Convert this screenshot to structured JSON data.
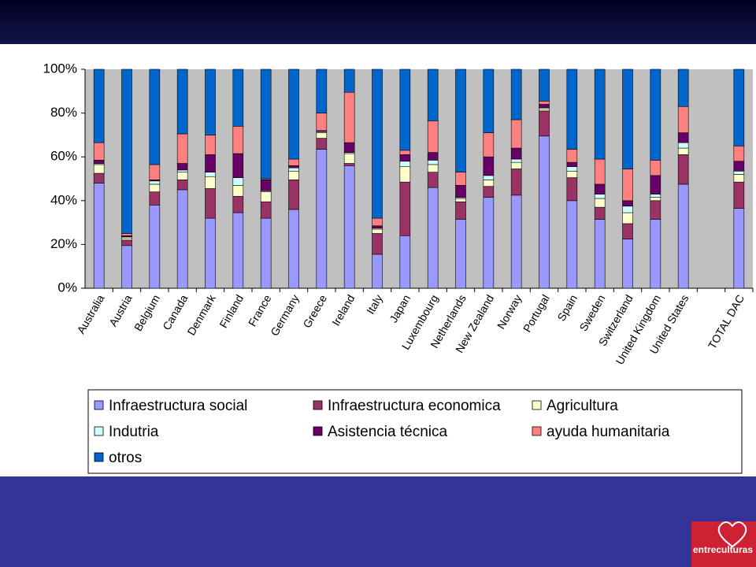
{
  "chart_data": {
    "type": "stacked_bar",
    "categories": [
      "Australia",
      "Austria",
      "Belgium",
      "Canada",
      "Denmark",
      "Finland",
      "France",
      "Germany",
      "Greece",
      "Ireland",
      "Italy",
      "Japan",
      "Luxembourg",
      "Netherlands",
      "New Zealand",
      "Norway",
      "Portugal",
      "Spain",
      "Sweden",
      "Switzerland",
      "United Kingdom",
      "United States",
      null,
      "TOTAL DAC"
    ],
    "series": [
      {
        "name": "Infraestructura social",
        "color": "#9999ff",
        "values": [
          48,
          19.5,
          38,
          45,
          32,
          34.5,
          32,
          36,
          63.5,
          56,
          15.5,
          24,
          46,
          31.5,
          41.5,
          42.5,
          69.5,
          40,
          31.5,
          22.5,
          31.5,
          47.5,
          null,
          36.5
        ]
      },
      {
        "name": "Infraestructura economica",
        "color": "#993366",
        "values": [
          4.5,
          2.5,
          6,
          4.5,
          13.5,
          7.5,
          7.5,
          13.5,
          5,
          1,
          9.5,
          24.5,
          7,
          8,
          5,
          12,
          11.5,
          10.5,
          5.5,
          7,
          8.5,
          13.5,
          null,
          12
        ]
      },
      {
        "name": "Agricultura",
        "color": "#ffffcc",
        "values": [
          4,
          1,
          3.5,
          3.5,
          5.5,
          5,
          4.5,
          4,
          2.5,
          4.5,
          2,
          7,
          3.5,
          1.5,
          3,
          3,
          1,
          3,
          4,
          5,
          1.5,
          3,
          null,
          3.5
        ]
      },
      {
        "name": "Indutria",
        "color": "#ccffff",
        "values": [
          0.5,
          0.5,
          1.5,
          1,
          2,
          3.5,
          0.5,
          1.5,
          0.5,
          0.5,
          0.5,
          2.5,
          2,
          0.5,
          2,
          1.5,
          0.5,
          2,
          2,
          3,
          1.5,
          2.5,
          null,
          1.5
        ]
      },
      {
        "name": "Asistencia técnica",
        "color": "#660066",
        "values": [
          1.5,
          0.5,
          0.5,
          3,
          8,
          11,
          5,
          1,
          0.5,
          4.5,
          1,
          3,
          3.5,
          5.5,
          8.5,
          5,
          1.5,
          2,
          4.5,
          2.5,
          8.5,
          4.5,
          null,
          4.5
        ]
      },
      {
        "name": "ayuda humanitaria",
        "color": "#ff8080",
        "values": [
          8,
          1,
          7,
          13.5,
          9,
          12.5,
          0.5,
          3,
          8,
          23,
          3.5,
          2,
          14.5,
          6,
          11,
          13,
          1.5,
          6,
          11.5,
          14.5,
          7,
          12,
          null,
          7
        ]
      },
      {
        "name": "otros",
        "color": "#0066cc",
        "values": [
          33.5,
          75,
          43.5,
          29.5,
          30,
          26,
          50,
          41,
          20,
          10.5,
          68,
          37,
          23.5,
          47,
          29,
          23,
          14.5,
          36.5,
          41,
          45.5,
          41.5,
          17,
          null,
          35
        ]
      }
    ],
    "ylim": [
      0,
      100
    ],
    "yticks": [
      {
        "value": 0,
        "label": "0%"
      },
      {
        "value": 20,
        "label": "20%"
      },
      {
        "value": 40,
        "label": "40%"
      },
      {
        "value": 60,
        "label": "60%"
      },
      {
        "value": 80,
        "label": "80%"
      },
      {
        "value": 100,
        "label": "100%"
      }
    ],
    "grid": false
  },
  "logo": {
    "text": "entreculturas"
  }
}
